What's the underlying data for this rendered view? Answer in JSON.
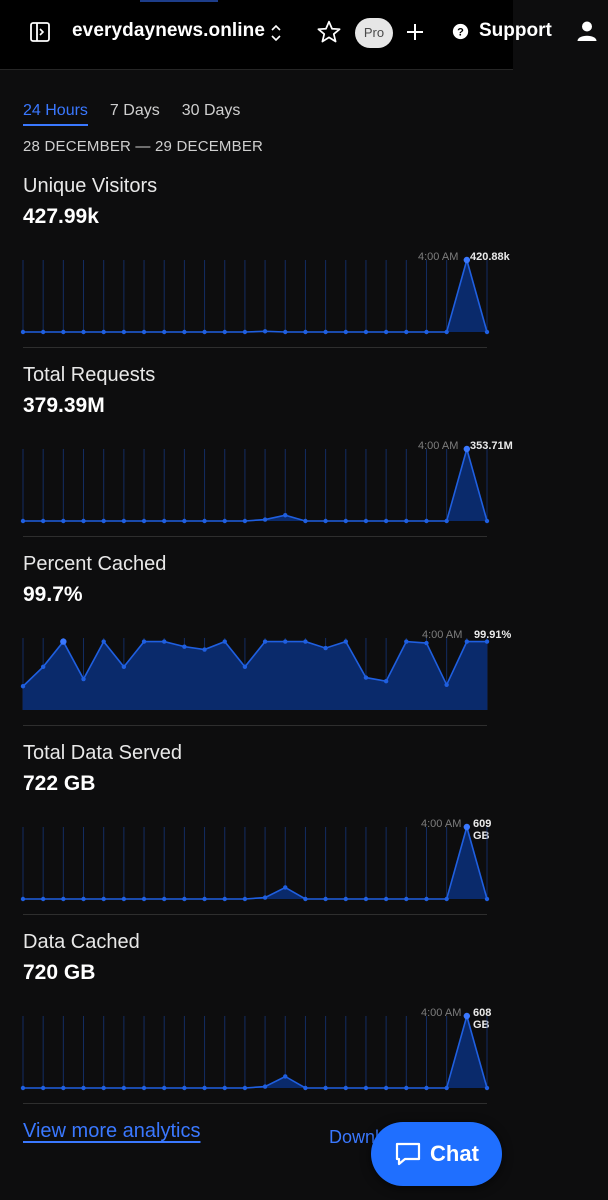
{
  "header": {
    "site_name": "everydaynews.online",
    "pro_badge": "Pro",
    "support_label": "Support"
  },
  "tabs": [
    {
      "label": "24 Hours",
      "active": true
    },
    {
      "label": "7 Days",
      "active": false
    },
    {
      "label": "30 Days",
      "active": false
    }
  ],
  "date_range": "28 DECEMBER — 29 DECEMBER",
  "colors": {
    "accent": "#3a78ff",
    "chart_fill": "#0a2a6b",
    "chart_line": "#1f5fe0",
    "chat_button": "#1f6fff"
  },
  "cards": [
    {
      "label": "Unique Visitors",
      "value": "427.99k",
      "peak_time": "4:00 AM",
      "peak_value": "420.88k"
    },
    {
      "label": "Total Requests",
      "value": "379.39M",
      "peak_time": "4:00 AM",
      "peak_value": "353.71M"
    },
    {
      "label": "Percent Cached",
      "value": "99.7%",
      "peak_time": "4:00 AM",
      "peak_value": "99.91%"
    },
    {
      "label": "Total Data Served",
      "value": "722 GB",
      "peak_time": "4:00 AM",
      "peak_value": "609 GB"
    },
    {
      "label": "Data Cached",
      "value": "720 GB",
      "peak_time": "4:00 AM",
      "peak_value": "608 GB"
    }
  ],
  "chart_data": [
    {
      "type": "area",
      "title": "Unique Visitors",
      "peak_label": "420.88k",
      "values": [
        0,
        0,
        0,
        0,
        0,
        0,
        0,
        0,
        0,
        0,
        0,
        0,
        0.01,
        0,
        0,
        0,
        0,
        0,
        0,
        0,
        0,
        0,
        1,
        0
      ],
      "ylim": [
        0,
        1
      ]
    },
    {
      "type": "area",
      "title": "Total Requests",
      "peak_label": "353.71M",
      "values": [
        0,
        0,
        0,
        0,
        0,
        0,
        0,
        0,
        0,
        0,
        0,
        0,
        0.02,
        0.08,
        0,
        0,
        0,
        0,
        0,
        0,
        0,
        0,
        1,
        0
      ],
      "ylim": [
        0,
        1
      ]
    },
    {
      "type": "area",
      "title": "Percent Cached",
      "peak_label": "99.91%",
      "values": [
        0.33,
        0.6,
        0.95,
        0.43,
        0.95,
        0.6,
        0.95,
        0.95,
        0.88,
        0.84,
        0.95,
        0.6,
        0.95,
        0.95,
        0.95,
        0.86,
        0.95,
        0.45,
        0.4,
        0.95,
        0.93,
        0.35,
        0.95,
        0.95
      ],
      "ylim": [
        0,
        1
      ]
    },
    {
      "type": "area",
      "title": "Total Data Served",
      "peak_label": "609 GB",
      "values": [
        0,
        0,
        0,
        0,
        0,
        0,
        0,
        0,
        0,
        0,
        0,
        0,
        0.02,
        0.16,
        0,
        0,
        0,
        0,
        0,
        0,
        0,
        0,
        1,
        0
      ],
      "ylim": [
        0,
        1
      ]
    },
    {
      "type": "area",
      "title": "Data Cached",
      "peak_label": "608 GB",
      "values": [
        0,
        0,
        0,
        0,
        0,
        0,
        0,
        0,
        0,
        0,
        0,
        0,
        0.02,
        0.16,
        0,
        0,
        0,
        0,
        0,
        0,
        0,
        0,
        1,
        0
      ],
      "ylim": [
        0,
        1
      ]
    }
  ],
  "footer": {
    "view_more": "View more analytics",
    "download": "Download",
    "chat_label": "Chat"
  }
}
